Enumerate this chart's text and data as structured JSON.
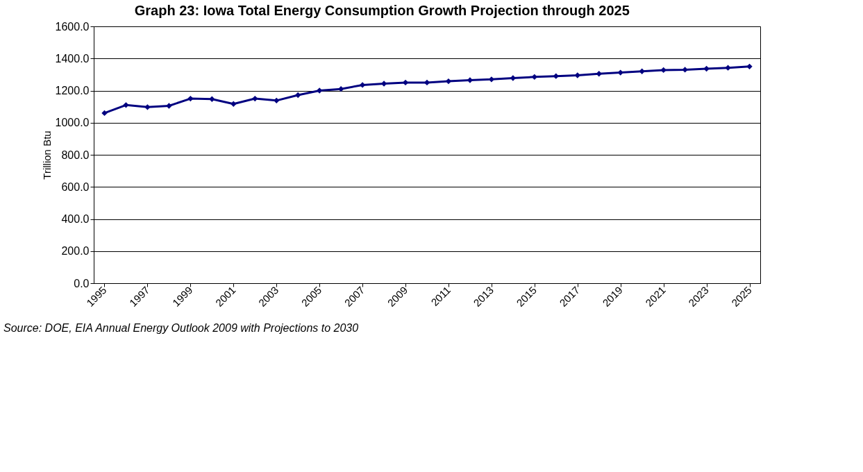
{
  "chart_data": {
    "type": "line",
    "title": "Graph 23: Iowa Total Energy Consumption Growth Projection through 2025",
    "ylabel": "Trillion Btu",
    "categories": [
      "1995",
      null,
      "1997",
      null,
      "1999",
      null,
      "2001",
      null,
      "2003",
      null,
      "2005",
      null,
      "2007",
      null,
      "2009",
      null,
      "2011",
      null,
      "2013",
      null,
      "2015",
      null,
      "2017",
      null,
      "2019",
      null,
      "2021",
      null,
      "2023",
      null,
      "2025"
    ],
    "series": [
      {
        "color": "#000080",
        "values": [
          1060,
          1110,
          1097,
          1105,
          1150,
          1147,
          1117,
          1150,
          1138,
          1172,
          1200,
          1210,
          1235,
          1243,
          1250,
          1250,
          1258,
          1265,
          1270,
          1278,
          1285,
          1290,
          1295,
          1305,
          1312,
          1320,
          1328,
          1330,
          1336,
          1342,
          1350
        ]
      }
    ],
    "ylim": [
      0,
      1600
    ],
    "yticks": [
      {
        "value": 0,
        "label": "0.0"
      },
      {
        "value": 200,
        "label": "200.0"
      },
      {
        "value": 400,
        "label": "400.0"
      },
      {
        "value": 600,
        "label": "600.0"
      },
      {
        "value": 800,
        "label": "800.0"
      },
      {
        "value": 1000,
        "label": "1000.0"
      },
      {
        "value": 1200,
        "label": "1200.0"
      },
      {
        "value": 1400,
        "label": "1400.0"
      },
      {
        "value": 1600,
        "label": "1600.0"
      }
    ],
    "grid": "y",
    "legend": false,
    "marker": "diamond",
    "line_style": "solid",
    "annotations": [
      "Source: DOE, EIA Annual Energy Outlook 2009 with Projections to 2030"
    ]
  }
}
